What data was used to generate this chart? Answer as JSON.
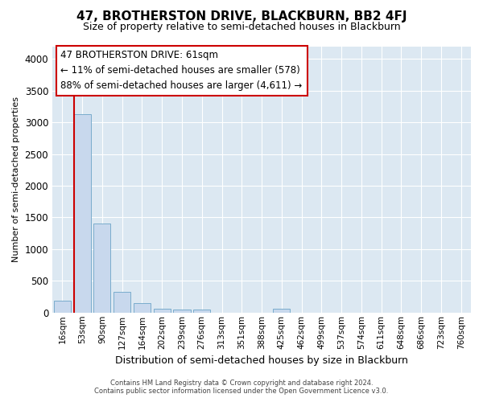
{
  "title": "47, BROTHERSTON DRIVE, BLACKBURN, BB2 4FJ",
  "subtitle": "Size of property relative to semi-detached houses in Blackburn",
  "xlabel": "Distribution of semi-detached houses by size in Blackburn",
  "ylabel": "Number of semi-detached properties",
  "bar_color": "#c8d8ed",
  "bar_edge_color": "#7aaccc",
  "marker_color": "#cc0000",
  "background_color": "#dce8f2",
  "grid_color": "#ffffff",
  "annotation_text": "47 BROTHERSTON DRIVE: 61sqm\n← 11% of semi-detached houses are smaller (578)\n88% of semi-detached houses are larger (4,611) →",
  "footer_line1": "Contains HM Land Registry data © Crown copyright and database right 2024.",
  "footer_line2": "Contains public sector information licensed under the Open Government Licence v3.0.",
  "bin_labels": [
    "16sqm",
    "53sqm",
    "90sqm",
    "127sqm",
    "164sqm",
    "202sqm",
    "239sqm",
    "276sqm",
    "313sqm",
    "351sqm",
    "388sqm",
    "425sqm",
    "462sqm",
    "499sqm",
    "537sqm",
    "574sqm",
    "611sqm",
    "648sqm",
    "686sqm",
    "723sqm",
    "760sqm"
  ],
  "bin_values": [
    185,
    3130,
    1400,
    330,
    145,
    60,
    50,
    50,
    0,
    0,
    0,
    60,
    0,
    0,
    0,
    0,
    0,
    0,
    0,
    0,
    0
  ],
  "property_bin_index": 1,
  "ylim": [
    0,
    4200
  ],
  "yticks": [
    0,
    500,
    1000,
    1500,
    2000,
    2500,
    3000,
    3500,
    4000
  ]
}
